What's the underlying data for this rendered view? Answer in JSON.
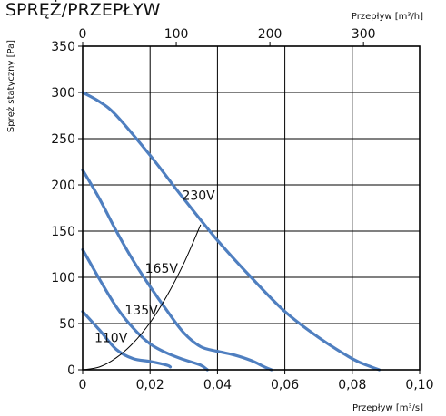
{
  "chart_data": {
    "type": "line",
    "title": "SPRĘŻ/PRZEPŁYW",
    "ylabel": "Spręż statyczny [Pa]",
    "xlabel": "Przepływ [m³/s]",
    "x2label": "Przepływ [m³/h]",
    "xlim": [
      0,
      0.1
    ],
    "ylim": [
      0,
      350
    ],
    "x2lim": [
      0,
      360
    ],
    "xticks": [
      "0",
      "0,02",
      "0,04",
      "0,06",
      "0,08",
      "0,10"
    ],
    "yticks": [
      "0",
      "50",
      "100",
      "150",
      "200",
      "250",
      "300",
      "350"
    ],
    "x2ticks": [
      "0",
      "100",
      "200",
      "300"
    ],
    "grid": true,
    "series_color": "#4f7fc0",
    "series": [
      {
        "name": "230V",
        "x": [
          0,
          0.005,
          0.01,
          0.02,
          0.03,
          0.04,
          0.05,
          0.06,
          0.07,
          0.08,
          0.085,
          0.088
        ],
        "y": [
          300,
          290,
          275,
          232,
          185,
          140,
          100,
          63,
          35,
          12,
          4,
          0
        ]
      },
      {
        "name": "165V",
        "x": [
          0,
          0.005,
          0.01,
          0.015,
          0.02,
          0.025,
          0.03,
          0.035,
          0.04,
          0.045,
          0.05,
          0.054,
          0.056
        ],
        "y": [
          216,
          185,
          150,
          118,
          90,
          64,
          40,
          25,
          20,
          16,
          10,
          3,
          0
        ]
      },
      {
        "name": "135V",
        "x": [
          0,
          0.005,
          0.01,
          0.015,
          0.02,
          0.025,
          0.03,
          0.035,
          0.037
        ],
        "y": [
          130,
          98,
          68,
          45,
          28,
          18,
          11,
          5,
          0
        ]
      },
      {
        "name": "110V",
        "x": [
          0,
          0.005,
          0.01,
          0.015,
          0.02,
          0.025,
          0.026
        ],
        "y": [
          63,
          43,
          22,
          12,
          9,
          5,
          3
        ]
      }
    ],
    "system_curve": {
      "x": [
        0,
        0.005,
        0.01,
        0.015,
        0.02,
        0.025,
        0.03,
        0.035
      ],
      "y": [
        0,
        3,
        13,
        29,
        51,
        80,
        115,
        157
      ]
    },
    "annotations": [
      "230V",
      "165V",
      "135V",
      "110V"
    ]
  }
}
